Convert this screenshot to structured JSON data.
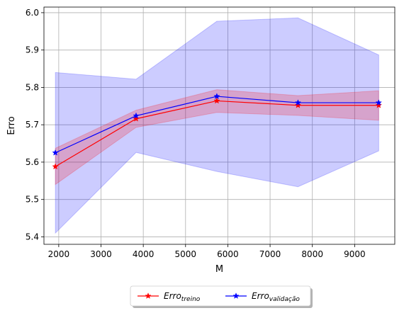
{
  "chart_data": {
    "type": "line",
    "xlabel": "M",
    "ylabel": "Erro",
    "xlim": [
      1650,
      9950
    ],
    "ylim": [
      5.38,
      6.015
    ],
    "xticks": [
      2000,
      3000,
      4000,
      5000,
      6000,
      7000,
      8000,
      9000
    ],
    "yticks": [
      5.4,
      5.5,
      5.6,
      5.7,
      5.8,
      5.9,
      6.0
    ],
    "grid": true,
    "legend_position": "bottom-center",
    "x": [
      1920,
      3830,
      5740,
      7660,
      9570
    ],
    "series": [
      {
        "name_main": "Erro",
        "name_sub": "treino",
        "color": "#ff0000",
        "marker": "star",
        "values": [
          5.588,
          5.716,
          5.764,
          5.752,
          5.752
        ],
        "band_lower": [
          5.54,
          5.693,
          5.733,
          5.725,
          5.712
        ],
        "band_upper": [
          5.637,
          5.739,
          5.794,
          5.778,
          5.791
        ],
        "band_color": "#ff0000"
      },
      {
        "name_main": "Erro",
        "name_sub": "validação",
        "color": "#0000ff",
        "marker": "star",
        "values": [
          5.625,
          5.724,
          5.776,
          5.759,
          5.759
        ],
        "band_lower": [
          5.41,
          5.626,
          5.575,
          5.534,
          5.63
        ],
        "band_upper": [
          5.84,
          5.822,
          5.977,
          5.986,
          5.887
        ],
        "band_color": "#0000ff"
      }
    ]
  }
}
